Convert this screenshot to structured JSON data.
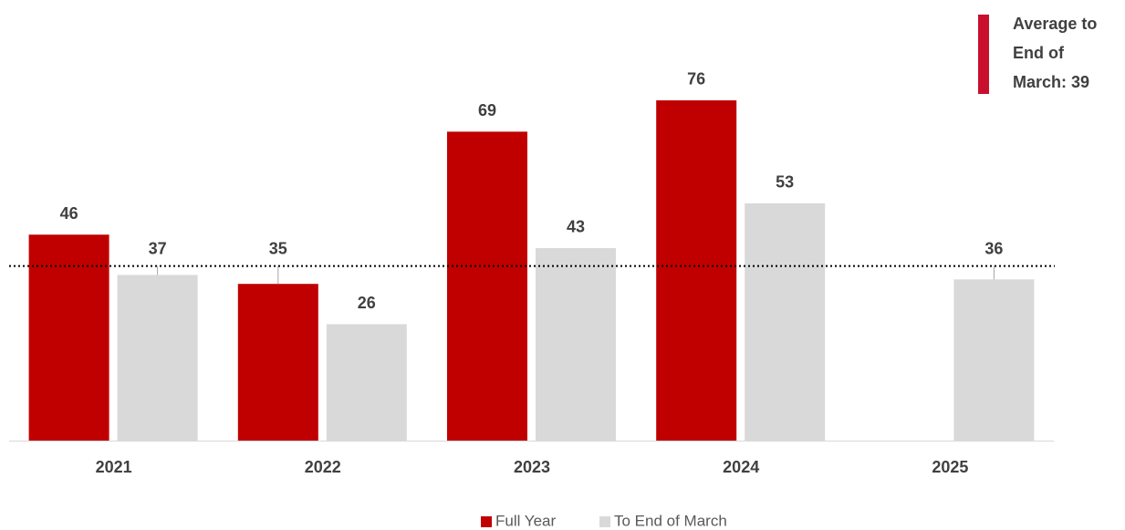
{
  "chart_data": {
    "type": "bar",
    "categories": [
      "2021",
      "2022",
      "2023",
      "2024",
      "2025"
    ],
    "series": [
      {
        "name": "Full Year",
        "color": "#c00000",
        "values": [
          46,
          35,
          69,
          76,
          null
        ]
      },
      {
        "name": "To End of March",
        "color": "#d9d9d9",
        "values": [
          37,
          26,
          43,
          53,
          36
        ]
      }
    ],
    "ylim": [
      0,
      98
    ],
    "reference_line": {
      "value": 39,
      "label": "Average to End of March: 39",
      "color": "#c8102e"
    }
  }
}
